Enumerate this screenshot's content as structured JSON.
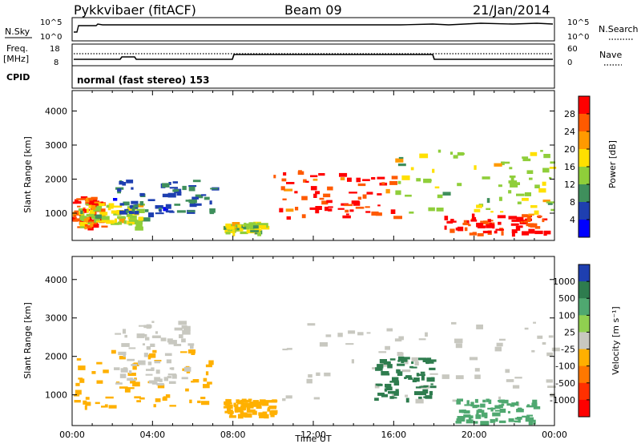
{
  "header": {
    "station": "Pykkvibaer (fitACF)",
    "beam": "Beam 09",
    "date": "21/Jan/2014"
  },
  "aux_panels": {
    "nsky_label": "N.Sky",
    "nsky_ticks": [
      "10^5",
      "10^0"
    ],
    "nsearch_label": "N.Search",
    "nsearch_ticks": [
      "10^5",
      "10^0"
    ],
    "freq_label": "Freq.",
    "freq_unit": "[MHz]",
    "freq_ticks": [
      "18",
      "8"
    ],
    "nave_label": "Nave",
    "nave_ticks": [
      "60",
      "0"
    ],
    "cpid_label": "CPID",
    "cpid_text": "normal (fast stereo) 153"
  },
  "chart_data": [
    {
      "type": "heatmap",
      "title": "",
      "ylabel": "Slant Range [km]",
      "yticks": [
        1000,
        2000,
        3000,
        4000
      ],
      "ylim": [
        200,
        4600
      ],
      "colorbar_label": "Power [dB]",
      "colorbar_ticks": [
        "28",
        "24",
        "20",
        "16",
        "12",
        "8",
        "4"
      ],
      "colorbar_colors": [
        "#ff0000",
        "#ff5a00",
        "#ff9a00",
        "#ffe000",
        "#8fce3a",
        "#3f8f5c",
        "#1e3fb0",
        "#0000ff"
      ],
      "regions": [
        {
          "x": [
            0,
            1.5
          ],
          "y": [
            600,
            1500
          ],
          "level": 28
        },
        {
          "x": [
            0.3,
            3.5
          ],
          "y": [
            600,
            1300
          ],
          "level": 16
        },
        {
          "x": [
            2,
            7
          ],
          "y": [
            1000,
            2000
          ],
          "level": 8
        },
        {
          "x": [
            7.5,
            9.5
          ],
          "y": [
            450,
            750
          ],
          "level": 16
        },
        {
          "x": [
            10,
            16
          ],
          "y": [
            900,
            2300
          ],
          "level": 28
        },
        {
          "x": [
            16,
            24
          ],
          "y": [
            1000,
            2900
          ],
          "level": 16
        },
        {
          "x": [
            18.5,
            23.5
          ],
          "y": [
            400,
            1000
          ],
          "level": 28
        }
      ]
    },
    {
      "type": "heatmap",
      "title": "",
      "ylabel": "Slant Range [km]",
      "yticks": [
        1000,
        2000,
        3000,
        4000
      ],
      "ylim": [
        200,
        4600
      ],
      "xlabel": "Time UT",
      "xticks": [
        "00:00",
        "04:00",
        "08:00",
        "12:00",
        "16:00",
        "20:00",
        "00:00"
      ],
      "colorbar_label": "Velocity [m s⁻¹]",
      "colorbar_ticks": [
        "1000",
        "500",
        "100",
        "25",
        "-25",
        "-100",
        "-500",
        "-1000"
      ],
      "colorbar_colors": [
        "#1e3fb0",
        "#2e7c4e",
        "#4fa870",
        "#90d050",
        "#c8c8c0",
        "#ffb000",
        "#ff7800",
        "#ff3000",
        "#ff0000"
      ],
      "regions": [
        {
          "x": [
            0,
            7
          ],
          "y": [
            700,
            2200
          ],
          "level": -100
        },
        {
          "x": [
            2,
            6
          ],
          "y": [
            1300,
            3000
          ],
          "level": 0
        },
        {
          "x": [
            7.5,
            10
          ],
          "y": [
            450,
            900
          ],
          "level": -100
        },
        {
          "x": [
            10,
            24
          ],
          "y": [
            800,
            2900
          ],
          "level": 0
        },
        {
          "x": [
            15,
            18
          ],
          "y": [
            900,
            2000
          ],
          "level": 500
        },
        {
          "x": [
            19,
            23
          ],
          "y": [
            300,
            900
          ],
          "level": 100
        }
      ]
    }
  ]
}
